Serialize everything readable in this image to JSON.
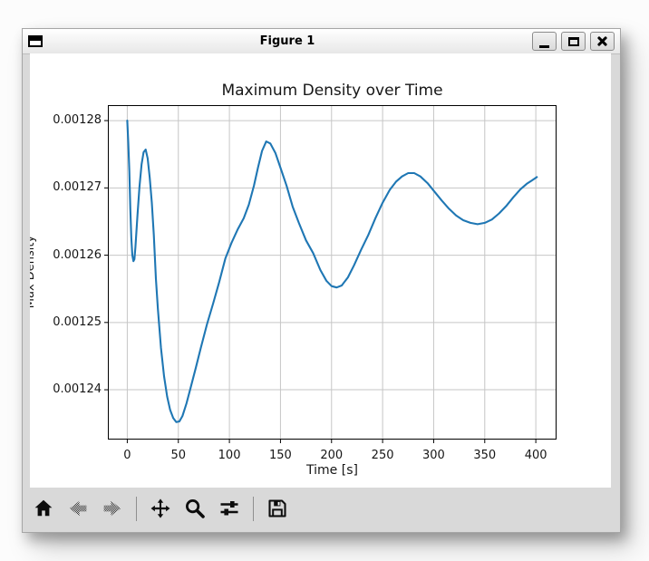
{
  "window": {
    "title": "Figure 1",
    "buttons": [
      "minimize",
      "maximize",
      "close"
    ]
  },
  "toolbar": {
    "tools": [
      {
        "name": "home",
        "enabled": true
      },
      {
        "name": "back",
        "enabled": false
      },
      {
        "name": "forward",
        "enabled": false
      },
      {
        "name": "pan",
        "enabled": true
      },
      {
        "name": "zoom-to-rect",
        "enabled": true
      },
      {
        "name": "configure-subplots",
        "enabled": true
      },
      {
        "name": "save",
        "enabled": true
      }
    ]
  },
  "chart_data": {
    "type": "line",
    "title": "Maximum Density over Time",
    "xlabel": "Time [s]",
    "ylabel": "Max Density",
    "grid": true,
    "legend": "none",
    "line_color": "#1f77b4",
    "grid_color": "#c6c6c6",
    "xlim": [
      -19,
      420.3
    ],
    "ylim": [
      0.0012326,
      0.0012823
    ],
    "xticks": {
      "values": [
        0,
        50,
        100,
        150,
        200,
        250,
        300,
        350,
        400
      ],
      "labels": [
        "0",
        "50",
        "100",
        "150",
        "200",
        "250",
        "300",
        "350",
        "400"
      ]
    },
    "yticks": {
      "values": [
        0.00128,
        0.00127,
        0.00126,
        0.00125,
        0.00124
      ],
      "labels": [
        "0.00128",
        "0.00127",
        "0.00126",
        "0.00125",
        "0.00124"
      ]
    },
    "series": [
      {
        "name": "max_density",
        "x": [
          0,
          1,
          2,
          3,
          4,
          5,
          6,
          7,
          8,
          10,
          12,
          14,
          16,
          18,
          20,
          22,
          24,
          26,
          28,
          30,
          33,
          36,
          39,
          42,
          45,
          48,
          51,
          54,
          58,
          62,
          67,
          72,
          78,
          84,
          90,
          96,
          102,
          108,
          114,
          119,
          124,
          128,
          132,
          136,
          140,
          145,
          150,
          156,
          162,
          168,
          175,
          182,
          189,
          195,
          200,
          205,
          210,
          216,
          222,
          229,
          236,
          243,
          250,
          257,
          263,
          269,
          275,
          281,
          287,
          294,
          301,
          308,
          315,
          322,
          329,
          336,
          343,
          350,
          357,
          364,
          371,
          378,
          385,
          391,
          396,
          401
        ],
        "y": [
          0.00128,
          0.0012768,
          0.0012725,
          0.0012668,
          0.0012625,
          0.00126,
          0.0012591,
          0.0012594,
          0.0012612,
          0.001266,
          0.0012702,
          0.0012735,
          0.0012753,
          0.0012757,
          0.0012744,
          0.0012715,
          0.0012678,
          0.001263,
          0.0012565,
          0.001252,
          0.0012462,
          0.001242,
          0.001239,
          0.001237,
          0.0012358,
          0.0012352,
          0.0012353,
          0.0012361,
          0.001238,
          0.0012403,
          0.0012432,
          0.0012462,
          0.0012497,
          0.0012528,
          0.001256,
          0.0012595,
          0.0012618,
          0.0012638,
          0.0012655,
          0.0012675,
          0.0012703,
          0.001273,
          0.0012755,
          0.0012769,
          0.0012766,
          0.0012752,
          0.001273,
          0.0012703,
          0.0012672,
          0.0012648,
          0.0012622,
          0.0012603,
          0.0012578,
          0.0012562,
          0.0012554,
          0.0012552,
          0.0012555,
          0.0012567,
          0.0012585,
          0.0012608,
          0.001263,
          0.0012655,
          0.0012678,
          0.0012697,
          0.0012709,
          0.0012717,
          0.0012722,
          0.0012722,
          0.0012717,
          0.0012707,
          0.0012694,
          0.0012681,
          0.0012669,
          0.0012659,
          0.0012652,
          0.0012648,
          0.0012646,
          0.0012648,
          0.0012653,
          0.0012662,
          0.0012673,
          0.0012686,
          0.0012698,
          0.0012706,
          0.0012711,
          0.0012716
        ]
      }
    ]
  }
}
